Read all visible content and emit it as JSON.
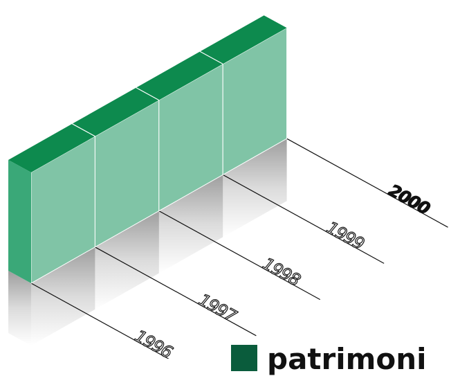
{
  "chart_data": {
    "type": "bar",
    "title": "",
    "xlabel": "",
    "ylabel": "",
    "categories": [
      "1996",
      "1997",
      "1998",
      "1999",
      "2000"
    ],
    "series": [
      {
        "name": "patrimoni",
        "values": [
          1,
          1,
          1,
          1,
          1
        ]
      }
    ],
    "emphasized_category": "2000",
    "legend_position": "bottom-right",
    "grid": false,
    "colors": {
      "bar_front": "#80c4a6",
      "bar_top": "#0d8a4e",
      "bar_side": "#3aa878",
      "legend_swatch": "#0a5c3c"
    }
  },
  "legend": {
    "label": "patrimoni"
  }
}
